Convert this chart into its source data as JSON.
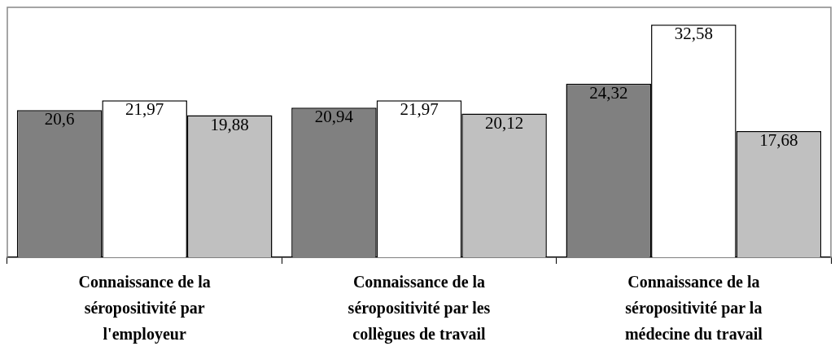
{
  "chart_data": {
    "type": "bar",
    "categories": [
      "Connaissance de la séropositivité par l'employeur",
      "Connaissance de la séropositivité par les collègues de travail",
      "Connaissance de la séropositivité par la médecine du travail"
    ],
    "series": [
      {
        "color": "#808080",
        "values": [
          20.6,
          20.94,
          24.32
        ],
        "value_labels": [
          "20,6",
          "20,94",
          "24,32"
        ]
      },
      {
        "color": "#ffffff",
        "values": [
          21.97,
          21.97,
          32.58
        ],
        "value_labels": [
          "21,97",
          "21,97",
          "32,58"
        ]
      },
      {
        "color": "#c0c0c0",
        "values": [
          19.88,
          20.12,
          17.68
        ],
        "value_labels": [
          "19,88",
          "20,12",
          "17,68"
        ]
      }
    ],
    "ylim": [
      0,
      35
    ],
    "legend": false,
    "grid": false
  }
}
